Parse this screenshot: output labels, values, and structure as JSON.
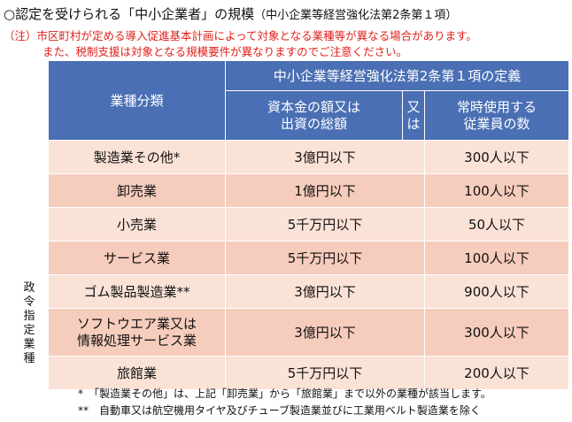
{
  "title": {
    "main": "○認定を受けられる「中小企業者」の規模",
    "sub": "（中小企業等経営強化法第2条第１項）"
  },
  "notes": [
    "（注）市区町村が定める導入促進基本計画によって対象となる業種等が異なる場合があります。",
    "また、税制支援は対象となる規模要件が異なりますのでご注意ください。"
  ],
  "table": {
    "header": {
      "industry": "業種分類",
      "definition": "中小企業等経営強化法第2条第１項の定義",
      "capital_line1": "資本金の額又は",
      "capital_line2": "出資の総額",
      "or": "又は",
      "employees_line1": "常時使用する",
      "employees_line2": "従業員の数"
    },
    "rows": [
      {
        "industry": "製造業その他*",
        "capital": "3億円以下",
        "employees": "300人以下"
      },
      {
        "industry": "卸売業",
        "capital": "1億円以下",
        "employees": "100人以下"
      },
      {
        "industry": "小売業",
        "capital": "5千万円以下",
        "employees": "50人以下"
      },
      {
        "industry": "サービス業",
        "capital": "5千万円以下",
        "employees": "100人以下"
      },
      {
        "industry": "ゴム製品製造業**",
        "capital": "3億円以下",
        "employees": "900人以下"
      },
      {
        "industry_line1": "ソフトウエア業又は",
        "industry_line2": "情報処理サービス業",
        "capital": "3億円以下",
        "employees": "300人以下"
      },
      {
        "industry": "旅館業",
        "capital": "5千万円以下",
        "employees": "200人以下"
      }
    ],
    "gov_label": "政令指定業種"
  },
  "footnotes": [
    "*　「製造業その他」は、上記「卸売業」から「旅館業」まで以外の業種が該当します。",
    "**　自動車又は航空機用タイヤ及びチューブ製造業並びに工業用ベルト製造業を除く"
  ],
  "colors": {
    "header_blue": "#4a6fb4",
    "row_light": "#fbe2d7",
    "row_dark": "#f6ccbc",
    "note_red": "#e0201a"
  }
}
